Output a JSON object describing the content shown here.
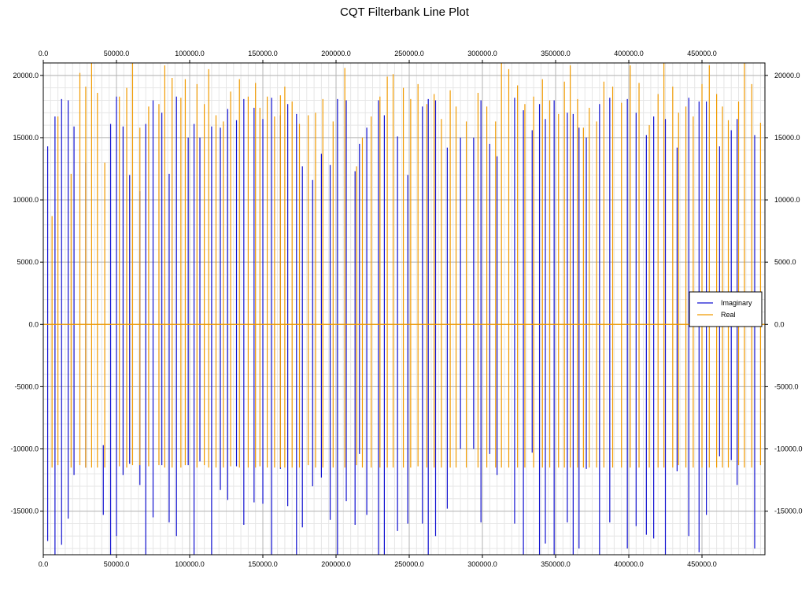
{
  "chart_data": {
    "type": "line",
    "title": "CQT Filterbank Line Plot",
    "xlabel": "",
    "ylabel": "",
    "xlim": [
      0,
      493000
    ],
    "ylim": [
      -18500,
      21000
    ],
    "x_ticks": [
      0,
      50000,
      100000,
      150000,
      200000,
      250000,
      300000,
      350000,
      400000,
      450000
    ],
    "x_tick_labels": [
      "0.0",
      "50000.0",
      "100000.0",
      "150000.0",
      "200000.0",
      "250000.0",
      "300000.0",
      "350000.0",
      "400000.0",
      "450000.0"
    ],
    "y_ticks": [
      -15000,
      -10000,
      -5000,
      0,
      5000,
      10000,
      15000,
      20000
    ],
    "y_tick_labels": [
      "-15000.0",
      "-10000.0",
      "-5000.0",
      "0.0",
      "5000.0",
      "10000.0",
      "15000.0",
      "20000.0"
    ],
    "grid": true,
    "legend_position": "right",
    "series": [
      {
        "name": "Imaginary",
        "color": "#1010d0",
        "values": [
          [
            3000,
            -17400,
            14300
          ],
          [
            8000,
            -18500,
            16700
          ],
          [
            12500,
            -17700,
            18100
          ],
          [
            17000,
            -15600,
            18000
          ],
          [
            21000,
            -12100,
            15900
          ],
          [
            29000,
            -11500,
            13000
          ],
          [
            41000,
            -15300,
            -9700
          ],
          [
            46000,
            -18500,
            16100
          ],
          [
            50000,
            -17000,
            18300
          ],
          [
            54500,
            -12100,
            15900
          ],
          [
            59000,
            -11200,
            12000
          ],
          [
            66000,
            -12900,
            10700
          ],
          [
            70000,
            -18500,
            16100
          ],
          [
            75000,
            -15500,
            18000
          ],
          [
            81000,
            -11300,
            17000
          ],
          [
            86000,
            -15900,
            12100
          ],
          [
            91000,
            -17000,
            18300
          ],
          [
            99000,
            -11300,
            15000
          ],
          [
            103000,
            -18500,
            16100
          ],
          [
            107000,
            -11000,
            15000
          ],
          [
            115000,
            -18500,
            15900
          ],
          [
            121000,
            -13300,
            15800
          ],
          [
            126000,
            -14100,
            17300
          ],
          [
            132000,
            -11400,
            16400
          ],
          [
            137000,
            -16100,
            18100
          ],
          [
            144000,
            -14300,
            17400
          ],
          [
            150000,
            -14400,
            16500
          ],
          [
            156000,
            -18500,
            18200
          ],
          [
            162000,
            -11600,
            16800
          ],
          [
            167000,
            -14600,
            17700
          ],
          [
            173000,
            -18500,
            16900
          ],
          [
            177000,
            -16300,
            12700
          ],
          [
            184000,
            -13000,
            11600
          ],
          [
            190000,
            -12300,
            13700
          ],
          [
            196000,
            -15700,
            12800
          ],
          [
            201000,
            -18500,
            18100
          ],
          [
            207000,
            -14200,
            18000
          ],
          [
            213000,
            -16100,
            12300
          ],
          [
            216000,
            -10400,
            14500
          ],
          [
            221000,
            -15300,
            15800
          ],
          [
            229000,
            -18500,
            18000
          ],
          [
            233000,
            -18500,
            16800
          ],
          [
            242000,
            -16600,
            15100
          ],
          [
            249000,
            -16000,
            12000
          ],
          [
            259000,
            -16000,
            17500
          ],
          [
            263000,
            -18500,
            18100
          ],
          [
            268000,
            -17000,
            18000
          ],
          [
            276000,
            -14800,
            14200
          ],
          [
            285000,
            -10000,
            15000
          ],
          [
            294000,
            -10000,
            15000
          ],
          [
            299000,
            -15900,
            18000
          ],
          [
            305000,
            -10400,
            14500
          ],
          [
            310000,
            -12100,
            13500
          ],
          [
            322000,
            -16000,
            18200
          ],
          [
            328000,
            -18500,
            17200
          ],
          [
            334000,
            -10300,
            15600
          ],
          [
            339000,
            -18500,
            17700
          ],
          [
            343000,
            -17600,
            16500
          ],
          [
            349000,
            -18500,
            18000
          ],
          [
            358000,
            -15900,
            17000
          ],
          [
            362000,
            -18500,
            16900
          ],
          [
            366000,
            -18000,
            15800
          ],
          [
            371000,
            -11600,
            15000
          ],
          [
            380000,
            -18500,
            17700
          ],
          [
            387000,
            -15900,
            18200
          ],
          [
            399000,
            -18000,
            18100
          ],
          [
            405000,
            -16200,
            17000
          ],
          [
            412000,
            -16900,
            15200
          ],
          [
            417000,
            -17200,
            16700
          ],
          [
            425000,
            -18500,
            16500
          ],
          [
            433000,
            -11800,
            14200
          ],
          [
            441000,
            -17000,
            18200
          ],
          [
            448000,
            -18300,
            17900
          ],
          [
            453000,
            -15300,
            17900
          ],
          [
            462000,
            -10600,
            14300
          ],
          [
            470000,
            -10900,
            15600
          ],
          [
            474000,
            -12900,
            16500
          ],
          [
            486000,
            -18000,
            15200
          ]
        ]
      },
      {
        "name": "Real",
        "color": "#f09a00",
        "values": [
          [
            6000,
            -11500,
            8700
          ],
          [
            10000,
            -11300,
            16700
          ],
          [
            19000,
            -11500,
            12100
          ],
          [
            25000,
            -11300,
            20200
          ],
          [
            29000,
            -11500,
            19100
          ],
          [
            33000,
            -11500,
            21000
          ],
          [
            37000,
            -11500,
            18600
          ],
          [
            42000,
            -11500,
            13000
          ],
          [
            52000,
            -11400,
            18300
          ],
          [
            57000,
            -11500,
            19000
          ],
          [
            61000,
            -11300,
            21000
          ],
          [
            66000,
            -11300,
            15800
          ],
          [
            72000,
            -11400,
            17500
          ],
          [
            79000,
            -11300,
            17700
          ],
          [
            83000,
            -11500,
            20800
          ],
          [
            88000,
            -11500,
            19800
          ],
          [
            94000,
            -11500,
            18200
          ],
          [
            97000,
            -11300,
            19700
          ],
          [
            105000,
            -11500,
            19300
          ],
          [
            110000,
            -11300,
            17700
          ],
          [
            113000,
            -11500,
            20500
          ],
          [
            118000,
            -11500,
            16800
          ],
          [
            123000,
            -11500,
            16300
          ],
          [
            128000,
            -11400,
            18700
          ],
          [
            134000,
            -11500,
            19700
          ],
          [
            140000,
            -11500,
            18300
          ],
          [
            145000,
            -11500,
            19400
          ],
          [
            148000,
            -11400,
            17400
          ],
          [
            153000,
            -11500,
            18300
          ],
          [
            158000,
            -11500,
            16700
          ],
          [
            162000,
            -11500,
            18400
          ],
          [
            165000,
            -11500,
            19100
          ],
          [
            170000,
            -11500,
            17900
          ],
          [
            175000,
            -11500,
            16100
          ],
          [
            181000,
            -11300,
            16800
          ],
          [
            186000,
            -11500,
            17000
          ],
          [
            191000,
            -11500,
            18100
          ],
          [
            198000,
            -11500,
            16300
          ],
          [
            206000,
            -11500,
            20600
          ],
          [
            214000,
            -11300,
            12700
          ],
          [
            218000,
            -11500,
            15000
          ],
          [
            224000,
            -11500,
            16700
          ],
          [
            230000,
            -11500,
            18300
          ],
          [
            235000,
            -11500,
            19900
          ],
          [
            239000,
            -11500,
            20100
          ],
          [
            246000,
            -11500,
            19000
          ],
          [
            251000,
            -11500,
            18100
          ],
          [
            256000,
            -11400,
            19300
          ],
          [
            262000,
            -11500,
            17700
          ],
          [
            267000,
            -11500,
            18500
          ],
          [
            272000,
            -11500,
            16500
          ],
          [
            278000,
            -11500,
            18800
          ],
          [
            282000,
            -11500,
            17500
          ],
          [
            289000,
            -11500,
            16300
          ],
          [
            297000,
            -11500,
            18600
          ],
          [
            303000,
            -11500,
            17500
          ],
          [
            309000,
            -11500,
            16300
          ],
          [
            313000,
            -11500,
            21000
          ],
          [
            318000,
            -11500,
            20500
          ],
          [
            324000,
            -11500,
            19200
          ],
          [
            329000,
            -11500,
            17700
          ],
          [
            335000,
            -11500,
            18300
          ],
          [
            341000,
            -11500,
            19700
          ],
          [
            346000,
            -11500,
            18000
          ],
          [
            352000,
            -11500,
            16900
          ],
          [
            356000,
            -11500,
            19500
          ],
          [
            360000,
            -11500,
            20800
          ],
          [
            365000,
            -11500,
            18100
          ],
          [
            369000,
            -11500,
            15800
          ],
          [
            373000,
            -11500,
            17400
          ],
          [
            378000,
            -11500,
            16300
          ],
          [
            383000,
            -11500,
            19500
          ],
          [
            389000,
            -11500,
            19100
          ],
          [
            395000,
            -11500,
            17800
          ],
          [
            401000,
            -11500,
            20800
          ],
          [
            407000,
            -11500,
            19400
          ],
          [
            414000,
            -11500,
            16000
          ],
          [
            420000,
            -11500,
            18500
          ],
          [
            424000,
            -11500,
            21000
          ],
          [
            430000,
            -11500,
            19100
          ],
          [
            434000,
            -11300,
            17000
          ],
          [
            439000,
            -11500,
            17500
          ],
          [
            444000,
            -11500,
            16700
          ],
          [
            450000,
            -11500,
            19300
          ],
          [
            455000,
            -11500,
            20800
          ],
          [
            460000,
            -11500,
            18500
          ],
          [
            464000,
            -11500,
            17500
          ],
          [
            468000,
            -11500,
            16400
          ],
          [
            475000,
            -11300,
            17900
          ],
          [
            479000,
            -11500,
            21000
          ],
          [
            484000,
            -11500,
            19300
          ],
          [
            490000,
            -11300,
            16200
          ]
        ]
      }
    ]
  }
}
